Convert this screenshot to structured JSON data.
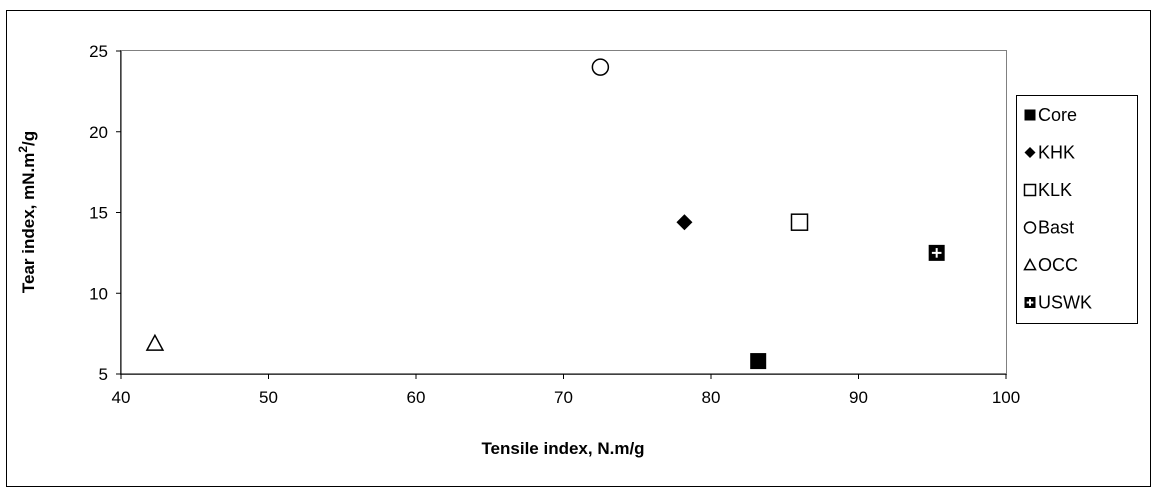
{
  "chart_data": {
    "type": "scatter",
    "xlabel": "Tensile index, N.m/g",
    "ylabel": "Tear index, mN.m",
    "ylabel_sup": "2",
    "ylabel_end": "/g",
    "xlim": [
      40,
      100
    ],
    "ylim": [
      5,
      25
    ],
    "xticks": [
      "40",
      "50",
      "60",
      "70",
      "80",
      "90",
      "100"
    ],
    "yticks": [
      "5",
      "10",
      "15",
      "20",
      "25"
    ],
    "grid": false,
    "legend_position": "right",
    "series": [
      {
        "name": "Core",
        "marker": "filled-square",
        "points": [
          {
            "x": 83.2,
            "y": 5.8
          }
        ]
      },
      {
        "name": "KHK",
        "marker": "filled-diamond",
        "points": [
          {
            "x": 78.2,
            "y": 14.4
          }
        ]
      },
      {
        "name": "KLK",
        "marker": "open-square",
        "points": [
          {
            "x": 86.0,
            "y": 14.4
          }
        ]
      },
      {
        "name": "Bast",
        "marker": "open-circle",
        "points": [
          {
            "x": 72.5,
            "y": 24.0
          }
        ]
      },
      {
        "name": "OCC",
        "marker": "open-triangle",
        "points": [
          {
            "x": 42.3,
            "y": 6.9
          }
        ]
      },
      {
        "name": "USWK",
        "marker": "filled-square-plus",
        "points": [
          {
            "x": 95.3,
            "y": 12.5
          }
        ]
      }
    ],
    "colors": {
      "marker": "#000000",
      "plot_area": "#ffffff",
      "border": "#000000"
    }
  }
}
